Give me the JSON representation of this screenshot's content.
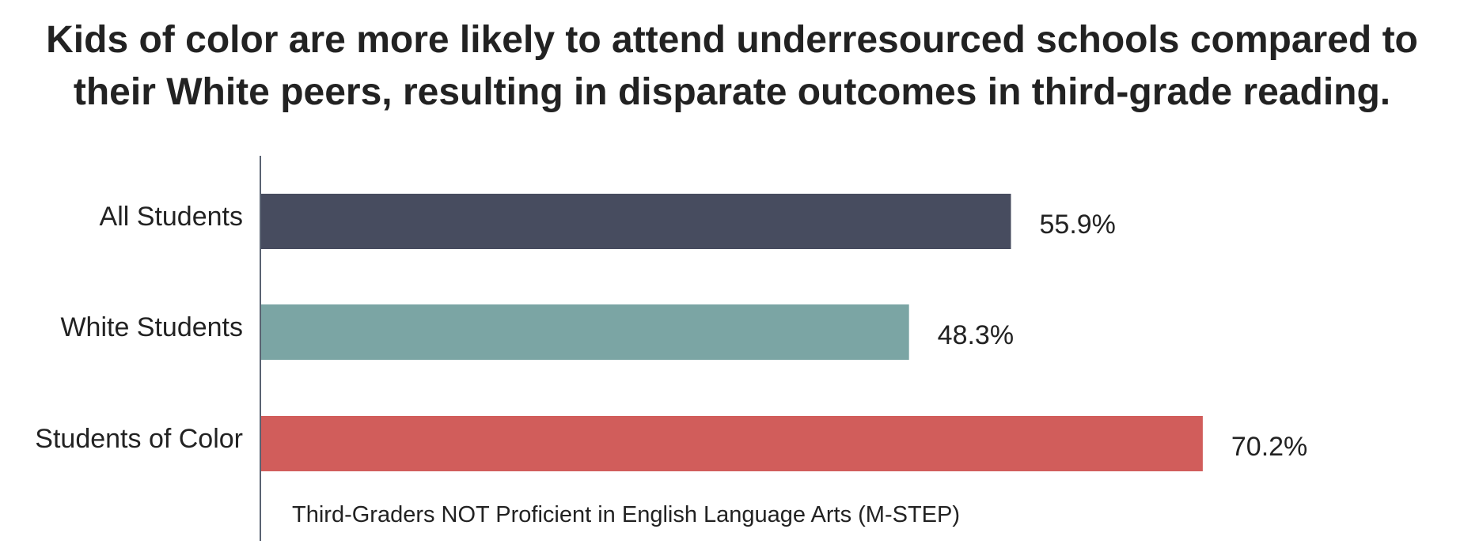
{
  "chart_data": {
    "type": "bar",
    "orientation": "horizontal",
    "title": [
      "Kids of color are more likely to attend underresourced schools compared to",
      "their White peers, resulting in disparate outcomes in third-grade reading."
    ],
    "xlabel": "Third-Graders NOT Proficient in English Language Arts (M-STEP)",
    "ylabel": "",
    "xlim": [
      0,
      100
    ],
    "grid": false,
    "legend": "none",
    "categories": [
      "All Students",
      "White Students",
      "Students of Color"
    ],
    "values": [
      55.9,
      48.3,
      70.2
    ],
    "value_labels": [
      "55.9%",
      "48.3%",
      "70.2%"
    ],
    "colors": [
      "#474c5f",
      "#7ba5a4",
      "#d15d5b"
    ],
    "axis_color": "#5a6372"
  }
}
